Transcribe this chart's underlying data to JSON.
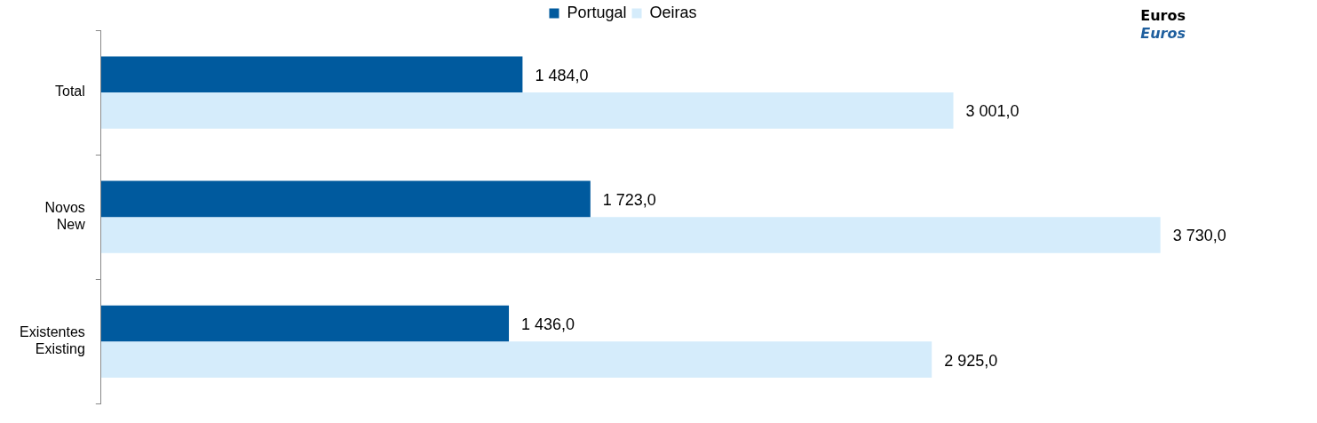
{
  "chart_data": {
    "type": "bar",
    "orientation": "horizontal",
    "categories": [
      "Total",
      "Novos\nNew",
      "Existentes\nExisting"
    ],
    "series": [
      {
        "name": "Portugal",
        "color": "#005a9e",
        "values": [
          1484.0,
          1723.0,
          1436.0
        ],
        "value_labels": [
          "1 484,0",
          "1 723,0",
          "1 436,0"
        ]
      },
      {
        "name": "Oeiras",
        "color": "#d5ecfb",
        "values": [
          3001.0,
          3730.0,
          2925.0
        ],
        "value_labels": [
          "3 001,0",
          "3 730,0",
          "2 925,0"
        ]
      }
    ],
    "legend": "top",
    "grid": false,
    "annotations": [
      "Euros",
      "Euros"
    ]
  }
}
